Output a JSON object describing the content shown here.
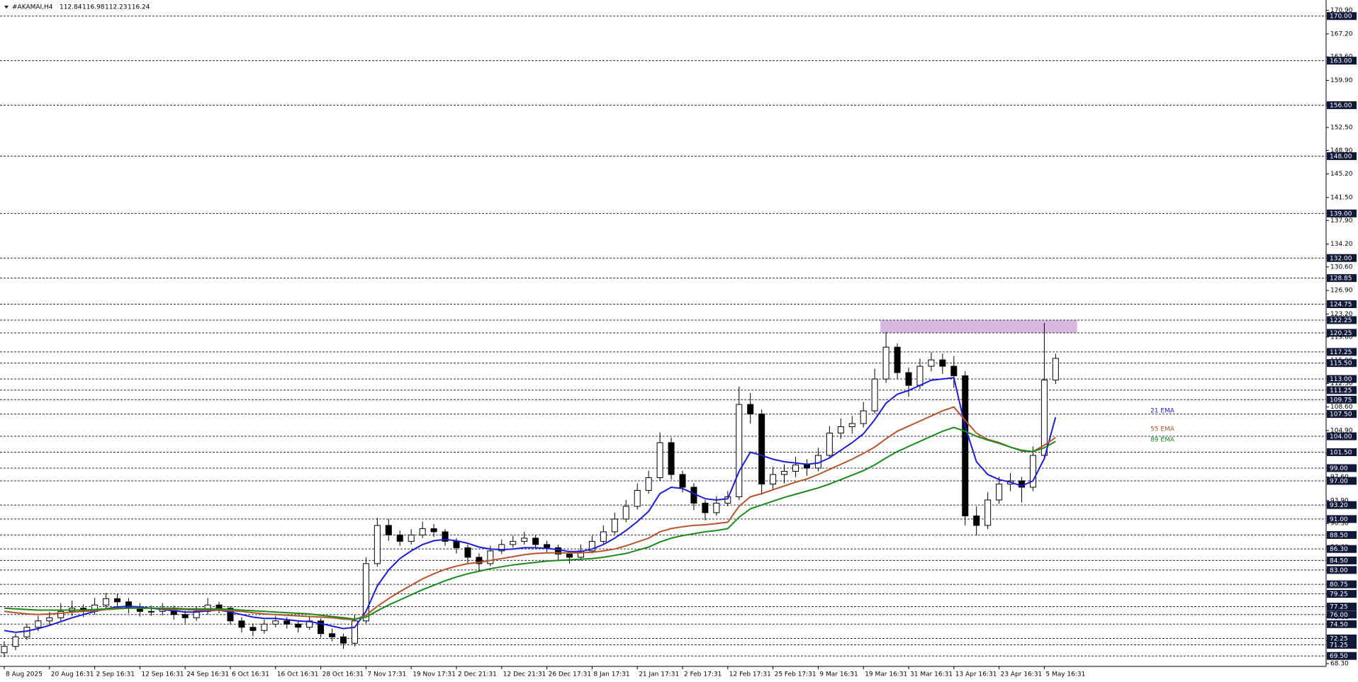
{
  "chart_data": {
    "type": "candlestick",
    "title": "#AKAMAI,H4",
    "categories": [
      "8 Aug 2025",
      null,
      null,
      null,
      "20 Aug 16:31",
      null,
      null,
      null,
      "2 Sep 16:31",
      null,
      null,
      null,
      "12 Sep 16:31",
      null,
      null,
      null,
      "24 Sep 16:31",
      null,
      null,
      null,
      "6 Oct 16:31",
      null,
      null,
      null,
      "16 Oct 16:31",
      null,
      null,
      null,
      "28 Oct 16:31",
      null,
      null,
      null,
      "7 Nov 17:31",
      null,
      null,
      null,
      "19 Nov 17:31",
      null,
      null,
      null,
      "2 Dec 21:31",
      null,
      null,
      null,
      "12 Dec 21:31",
      null,
      null,
      null,
      "26 Dec 17:31",
      null,
      null,
      null,
      "8 Jan 17:31",
      null,
      null,
      null,
      "21 Jan 17:31",
      null,
      null,
      null,
      "2 Feb 17:31",
      null,
      null,
      null,
      "12 Feb 17:31",
      null,
      null,
      null,
      "25 Feb 17:31",
      null,
      null,
      null,
      "9 Mar 16:31",
      null,
      null,
      null,
      "19 Mar 16:31",
      null,
      null,
      null,
      "31 Mar 16:31",
      null,
      null,
      null,
      "13 Apr 16:31",
      null,
      null,
      null,
      "23 Apr 16:31",
      null,
      null,
      null,
      "5 May 16:31",
      null
    ],
    "ohlc": [
      [
        70.0,
        71.8,
        69.3,
        71.0
      ],
      [
        71.0,
        73.0,
        70.4,
        72.5
      ],
      [
        72.5,
        74.6,
        72.0,
        74.0
      ],
      [
        74.0,
        75.8,
        73.4,
        75.0
      ],
      [
        75.0,
        76.4,
        74.3,
        75.5
      ],
      [
        75.5,
        77.8,
        75.0,
        76.5
      ],
      [
        76.5,
        78.2,
        75.8,
        77.0
      ],
      [
        77.0,
        77.6,
        75.6,
        76.5
      ],
      [
        76.5,
        78.6,
        76.0,
        77.5
      ],
      [
        77.5,
        79.4,
        77.0,
        78.5
      ],
      [
        78.5,
        79.2,
        77.2,
        78.0
      ],
      [
        78.0,
        78.6,
        76.2,
        77.0
      ],
      [
        77.0,
        77.8,
        75.7,
        76.5
      ],
      [
        76.5,
        77.4,
        75.8,
        76.5
      ],
      [
        76.5,
        77.8,
        75.9,
        77.0
      ],
      [
        77.0,
        77.4,
        75.2,
        76.0
      ],
      [
        76.0,
        76.6,
        74.6,
        75.5
      ],
      [
        75.5,
        77.2,
        75.0,
        76.5
      ],
      [
        76.5,
        78.6,
        76.0,
        77.5
      ],
      [
        77.5,
        78.0,
        76.2,
        77.0
      ],
      [
        77.0,
        77.3,
        74.4,
        75.0
      ],
      [
        75.0,
        75.6,
        73.2,
        74.0
      ],
      [
        74.0,
        74.6,
        72.6,
        73.5
      ],
      [
        73.5,
        75.2,
        73.0,
        74.5
      ],
      [
        74.5,
        75.8,
        74.0,
        75.0
      ],
      [
        75.0,
        75.6,
        73.8,
        74.5
      ],
      [
        74.5,
        75.0,
        73.2,
        74.0
      ],
      [
        74.0,
        75.8,
        73.6,
        75.0
      ],
      [
        75.0,
        75.4,
        72.4,
        73.0
      ],
      [
        73.0,
        73.8,
        71.8,
        72.5
      ],
      [
        72.5,
        73.0,
        70.6,
        71.5
      ],
      [
        71.5,
        76.0,
        71.0,
        75.0
      ],
      [
        75.0,
        85.0,
        74.6,
        84.0
      ],
      [
        84.0,
        91.2,
        83.5,
        90.0
      ],
      [
        90.0,
        91.0,
        87.6,
        88.5
      ],
      [
        88.5,
        89.2,
        86.8,
        87.5
      ],
      [
        87.5,
        89.4,
        87.0,
        88.5
      ],
      [
        88.5,
        90.6,
        88.0,
        89.5
      ],
      [
        89.5,
        90.2,
        88.2,
        89.0
      ],
      [
        89.0,
        89.4,
        86.8,
        87.5
      ],
      [
        87.5,
        88.0,
        85.6,
        86.5
      ],
      [
        86.5,
        87.0,
        84.0,
        85.0
      ],
      [
        85.0,
        85.6,
        82.8,
        84.0
      ],
      [
        84.0,
        86.8,
        83.6,
        86.0
      ],
      [
        86.0,
        87.8,
        85.5,
        87.0
      ],
      [
        87.0,
        88.4,
        86.5,
        87.5
      ],
      [
        87.5,
        89.0,
        87.0,
        88.0
      ],
      [
        88.0,
        88.5,
        86.4,
        87.0
      ],
      [
        87.0,
        87.6,
        85.6,
        86.5
      ],
      [
        86.5,
        87.0,
        84.6,
        85.5
      ],
      [
        85.5,
        86.0,
        84.0,
        85.0
      ],
      [
        85.0,
        87.0,
        84.5,
        86.0
      ],
      [
        86.0,
        88.4,
        85.6,
        87.5
      ],
      [
        87.5,
        90.0,
        87.0,
        89.0
      ],
      [
        89.0,
        92.0,
        88.6,
        91.0
      ],
      [
        91.0,
        94.0,
        90.5,
        93.0
      ],
      [
        93.0,
        96.6,
        92.5,
        95.5
      ],
      [
        95.5,
        98.6,
        95.0,
        97.5
      ],
      [
        97.5,
        104.6,
        97.0,
        103.0
      ],
      [
        103.0,
        103.8,
        97.2,
        98.0
      ],
      [
        98.0,
        98.6,
        95.2,
        96.0
      ],
      [
        96.0,
        96.6,
        92.4,
        93.5
      ],
      [
        93.5,
        94.0,
        90.8,
        92.0
      ],
      [
        92.0,
        94.6,
        91.5,
        93.5
      ],
      [
        93.5,
        95.4,
        93.0,
        94.5
      ],
      [
        94.5,
        111.8,
        94.0,
        109.0
      ],
      [
        109.0,
        110.8,
        106.0,
        107.5
      ],
      [
        107.5,
        108.2,
        94.8,
        96.5
      ],
      [
        96.5,
        99.2,
        95.6,
        98.0
      ],
      [
        98.0,
        99.6,
        96.6,
        98.5
      ],
      [
        98.5,
        100.8,
        97.6,
        99.5
      ],
      [
        99.5,
        100.4,
        97.8,
        99.0
      ],
      [
        99.0,
        102.2,
        98.5,
        101.0
      ],
      [
        101.0,
        105.6,
        100.6,
        104.5
      ],
      [
        104.5,
        106.8,
        103.6,
        105.5
      ],
      [
        105.5,
        107.2,
        104.4,
        106.0
      ],
      [
        106.0,
        109.4,
        105.4,
        108.0
      ],
      [
        108.0,
        114.6,
        107.6,
        113.0
      ],
      [
        113.0,
        120.4,
        112.4,
        118.0
      ],
      [
        118.0,
        118.6,
        113.0,
        114.0
      ],
      [
        114.0,
        114.8,
        110.2,
        112.0
      ],
      [
        112.0,
        116.2,
        111.4,
        115.0
      ],
      [
        115.0,
        117.2,
        114.2,
        116.0
      ],
      [
        116.0,
        117.0,
        113.8,
        115.0
      ],
      [
        115.0,
        116.6,
        111.6,
        113.5
      ],
      [
        113.5,
        114.2,
        90.0,
        91.5
      ],
      [
        91.5,
        93.0,
        88.4,
        90.0
      ],
      [
        90.0,
        95.2,
        89.4,
        94.0
      ],
      [
        94.0,
        97.6,
        93.4,
        96.5
      ],
      [
        96.5,
        98.2,
        95.4,
        97.0
      ],
      [
        97.0,
        97.6,
        93.6,
        96.0
      ],
      [
        96.0,
        102.4,
        95.4,
        101.0
      ],
      [
        101.0,
        121.8,
        100.6,
        112.84
      ],
      [
        112.84,
        116.98,
        112.23,
        116.24
      ]
    ],
    "series": [
      {
        "name": "21 EMA",
        "color": "#1c1cd4",
        "values": [
          73.5,
          73.2,
          73.4,
          73.8,
          74.3,
          74.9,
          75.5,
          76.0,
          76.5,
          76.9,
          77.2,
          77.3,
          77.2,
          77.0,
          76.8,
          76.6,
          76.4,
          76.4,
          76.6,
          76.7,
          76.4,
          76.0,
          75.6,
          75.4,
          75.4,
          75.2,
          75.0,
          74.9,
          74.6,
          74.2,
          73.8,
          74.0,
          76.5,
          80.5,
          83.0,
          84.8,
          86.0,
          87.0,
          87.6,
          87.8,
          87.6,
          87.2,
          86.6,
          86.3,
          86.2,
          86.3,
          86.5,
          86.5,
          86.4,
          86.2,
          85.9,
          85.9,
          86.3,
          87.0,
          88.0,
          89.2,
          90.6,
          92.2,
          95.0,
          96.0,
          95.8,
          95.0,
          94.2,
          94.0,
          94.2,
          98.5,
          101.5,
          101.0,
          100.4,
          100.0,
          99.8,
          99.6,
          99.8,
          100.6,
          101.8,
          103.0,
          104.4,
          106.6,
          109.2,
          110.6,
          111.2,
          112.0,
          112.8,
          113.0,
          113.2,
          105.5,
          100.0,
          98.0,
          97.2,
          96.8,
          96.2,
          97.0,
          100.5,
          107.0
        ]
      },
      {
        "name": "55 EMA",
        "color": "#b4552d",
        "values": [
          76.5,
          76.3,
          76.1,
          76.0,
          76.1,
          76.2,
          76.4,
          76.5,
          76.6,
          76.8,
          76.9,
          77.0,
          77.0,
          77.0,
          76.9,
          76.8,
          76.8,
          76.7,
          76.7,
          76.7,
          76.6,
          76.5,
          76.3,
          76.1,
          76.0,
          75.9,
          75.8,
          75.7,
          75.6,
          75.5,
          75.3,
          75.2,
          75.9,
          77.3,
          78.5,
          79.6,
          80.6,
          81.6,
          82.4,
          83.1,
          83.6,
          84.0,
          84.2,
          84.5,
          84.8,
          85.1,
          85.4,
          85.6,
          85.7,
          85.7,
          85.7,
          85.7,
          85.8,
          86.0,
          86.3,
          86.8,
          87.4,
          88.0,
          89.0,
          89.5,
          89.8,
          90.0,
          90.1,
          90.3,
          90.5,
          93.0,
          94.5,
          95.0,
          95.6,
          96.2,
          96.8,
          97.3,
          98.0,
          98.8,
          99.6,
          100.4,
          101.3,
          102.3,
          103.6,
          104.8,
          105.6,
          106.4,
          107.2,
          108.0,
          108.6,
          106.5,
          104.5,
          103.5,
          103.0,
          102.3,
          101.7,
          101.6,
          102.6,
          103.8
        ]
      },
      {
        "name": "89 EMA",
        "color": "#1a8a1a",
        "values": [
          77.0,
          76.9,
          76.8,
          76.7,
          76.7,
          76.7,
          76.7,
          76.7,
          76.8,
          76.9,
          77.0,
          77.0,
          77.0,
          77.0,
          77.0,
          77.0,
          76.9,
          76.9,
          76.9,
          76.9,
          76.8,
          76.7,
          76.6,
          76.5,
          76.4,
          76.3,
          76.2,
          76.1,
          75.9,
          75.7,
          75.5,
          75.3,
          75.6,
          76.6,
          77.5,
          78.3,
          79.1,
          79.9,
          80.6,
          81.3,
          81.9,
          82.4,
          82.8,
          83.2,
          83.5,
          83.8,
          84.0,
          84.2,
          84.4,
          84.5,
          84.6,
          84.7,
          84.8,
          85.0,
          85.3,
          85.6,
          86.1,
          86.6,
          87.4,
          88.0,
          88.4,
          88.7,
          89.0,
          89.2,
          89.5,
          91.3,
          92.6,
          93.2,
          93.8,
          94.4,
          94.9,
          95.4,
          95.9,
          96.5,
          97.2,
          97.9,
          98.6,
          99.5,
          100.6,
          101.6,
          102.4,
          103.2,
          104.0,
          104.8,
          105.4,
          104.8,
          104.0,
          103.4,
          102.9,
          102.3,
          101.8,
          101.6,
          102.2,
          103.2
        ]
      }
    ],
    "ylim": [
      68.3,
      170.9
    ],
    "yticks": [
      {
        "value": 170.9,
        "label": "170.90"
      },
      {
        "value": 167.2,
        "label": "167.20"
      },
      {
        "value": 163.6,
        "label": "163.60"
      },
      {
        "value": 159.9,
        "label": "159.90"
      },
      {
        "value": 156.2,
        "label": "156.20"
      },
      {
        "value": 152.5,
        "label": "152.50"
      },
      {
        "value": 148.9,
        "label": "148.90"
      },
      {
        "value": 145.2,
        "label": "145.20"
      },
      {
        "value": 141.5,
        "label": "141.50"
      },
      {
        "value": 137.9,
        "label": "137.90"
      },
      {
        "value": 134.2,
        "label": "134.20"
      },
      {
        "value": 130.6,
        "label": "130.60"
      },
      {
        "value": 126.9,
        "label": "126.90"
      },
      {
        "value": 123.2,
        "label": "123.20"
      },
      {
        "value": 119.6,
        "label": "119.60"
      },
      {
        "value": 115.9,
        "label": "115.90"
      },
      {
        "value": 112.3,
        "label": "112.30"
      },
      {
        "value": 108.6,
        "label": "108.60"
      },
      {
        "value": 104.9,
        "label": "104.90"
      },
      {
        "value": 101.3,
        "label": "101.30"
      },
      {
        "value": 97.6,
        "label": "97.60"
      },
      {
        "value": 93.9,
        "label": "93.90"
      },
      {
        "value": 90.3,
        "label": "90.30"
      },
      {
        "value": 86.6,
        "label": "86.60"
      },
      {
        "value": 82.9,
        "label": "82.90"
      },
      {
        "value": 79.3,
        "label": "79.30"
      },
      {
        "value": 75.6,
        "label": "75.60"
      },
      {
        "value": 71.9,
        "label": "71.90"
      },
      {
        "value": 68.3,
        "label": "68.30"
      }
    ],
    "levels": [
      {
        "value": 170,
        "label": "170.00"
      },
      {
        "value": 163,
        "label": "163.00"
      },
      {
        "value": 156,
        "label": "156.00"
      },
      {
        "value": 148,
        "label": "148.00"
      },
      {
        "value": 139,
        "label": "139.00"
      },
      {
        "value": 132,
        "label": "132.00"
      },
      {
        "value": 128.85,
        "label": "128.85"
      },
      {
        "value": 124.75,
        "label": "124.75"
      },
      {
        "value": 122.25,
        "label": "122.25"
      },
      {
        "value": 120.25,
        "label": "120.25"
      },
      {
        "value": 117.25,
        "label": "117.25"
      },
      {
        "value": 115.5,
        "label": "115.50"
      },
      {
        "value": 113,
        "label": "113.00"
      },
      {
        "value": 111.25,
        "label": "111.25"
      },
      {
        "value": 109.75,
        "label": "109.75"
      },
      {
        "value": 107.5,
        "label": "107.50"
      },
      {
        "value": 104,
        "label": "104.00"
      },
      {
        "value": 101.5,
        "label": "101.50"
      },
      {
        "value": 99,
        "label": "99.00"
      },
      {
        "value": 97,
        "label": "97.00"
      },
      {
        "value": 93.2,
        "label": "93.20"
      },
      {
        "value": 91,
        "label": "91.00"
      },
      {
        "value": 88.5,
        "label": "88.50"
      },
      {
        "value": 86.3,
        "label": "86.30"
      },
      {
        "value": 84.5,
        "label": "84.50"
      },
      {
        "value": 83,
        "label": "83.00"
      },
      {
        "value": 80.75,
        "label": "80.75"
      },
      {
        "value": 79.25,
        "label": "79.25"
      },
      {
        "value": 77.25,
        "label": "77.25"
      },
      {
        "value": 76,
        "label": "76.00"
      },
      {
        "value": 74.5,
        "label": "74.50"
      },
      {
        "value": 72.25,
        "label": "72.25"
      },
      {
        "value": 71.25,
        "label": "71.25"
      },
      {
        "value": 69.5,
        "label": "69.50"
      }
    ],
    "zone": {
      "low": 120.25,
      "high": 122.25,
      "color": "#d9b8e0"
    }
  }
}
